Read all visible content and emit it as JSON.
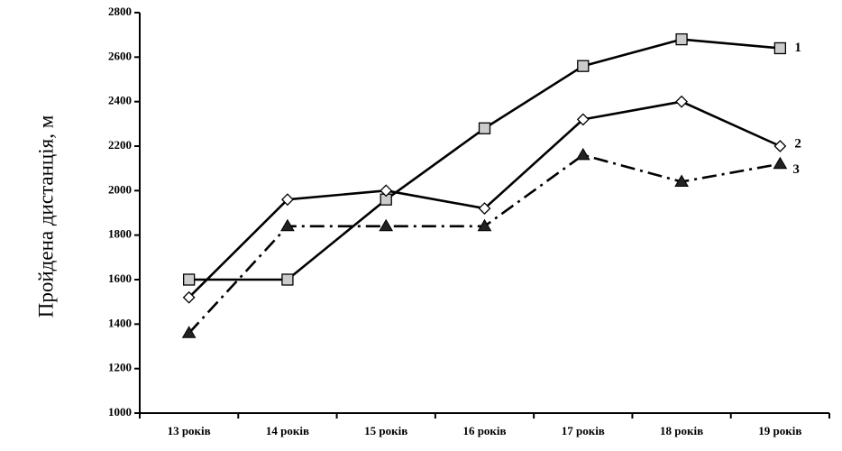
{
  "chart_data": {
    "type": "line",
    "title": "",
    "xlabel": "",
    "ylabel": "Пройдена дистанція, м",
    "categories": [
      "13 років",
      "14 років",
      "15 років",
      "16 років",
      "17 років",
      "18 років",
      "19 років"
    ],
    "ylim": [
      1000,
      2800
    ],
    "yticks": [
      1000,
      1200,
      1400,
      1600,
      1800,
      2000,
      2200,
      2400,
      2600,
      2800
    ],
    "grid": false,
    "series": [
      {
        "name": "1",
        "marker": "square",
        "line": "solid",
        "values": [
          1600,
          1600,
          1960,
          2280,
          2560,
          2680,
          2640
        ]
      },
      {
        "name": "2",
        "marker": "diamond",
        "line": "solid",
        "values": [
          1520,
          1960,
          2000,
          1920,
          2320,
          2400,
          2200
        ]
      },
      {
        "name": "3",
        "marker": "triangle",
        "line": "dash-dot",
        "values": [
          1360,
          1840,
          1840,
          1840,
          2160,
          2040,
          2120
        ]
      }
    ]
  }
}
